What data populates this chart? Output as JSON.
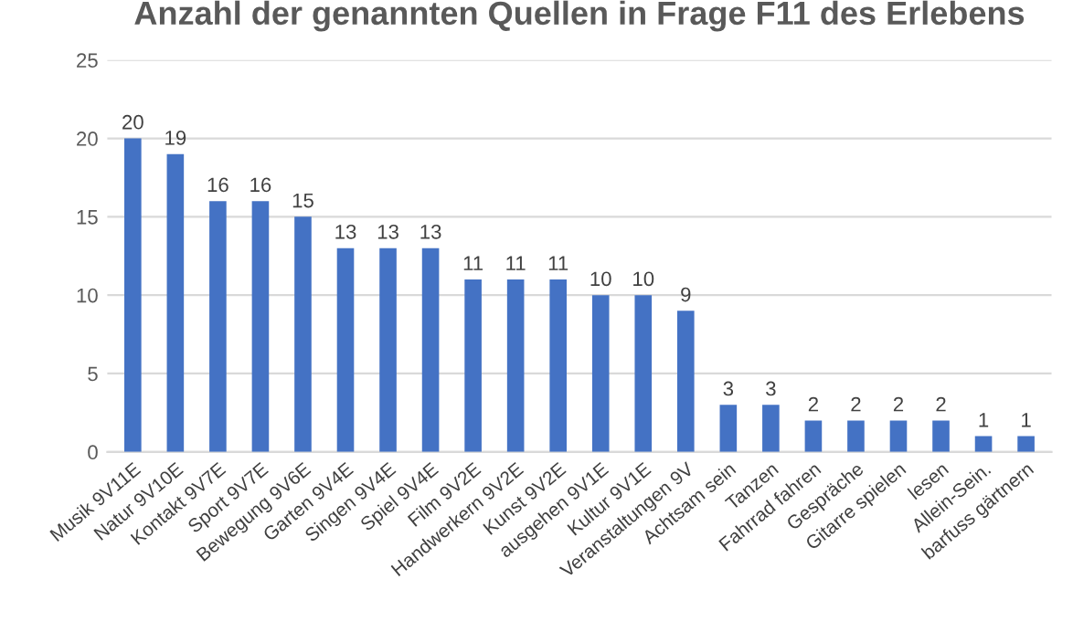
{
  "chart_data": {
    "type": "bar",
    "title": "Anzahl der genannten Quellen in Frage F11 des Erlebens",
    "categories": [
      "Musik 9V11E",
      "Natur 9V10E",
      "Kontakt 9V7E",
      "Sport 9V7E",
      "Bewegung 9V6E",
      "Garten 9V4E",
      "Singen 9V4E",
      "Spiel 9V4E",
      "Film 9V2E",
      "Handwerkern 9V2E",
      "Kunst 9V2E",
      "ausgehen 9V1E",
      "Kultur 9V1E",
      "Veranstaltungen 9V",
      "Achtsam sein",
      "Tanzen",
      "Fahrrad fahren",
      "Gespräche",
      "Gitarre spielen",
      "lesen",
      "Allein-Sein.",
      "barfuss gärtnern"
    ],
    "values": [
      20,
      19,
      16,
      16,
      15,
      13,
      13,
      13,
      11,
      11,
      11,
      10,
      10,
      9,
      3,
      3,
      2,
      2,
      2,
      2,
      1,
      1
    ],
    "color": "#4472c4",
    "ylim": [
      0,
      25
    ],
    "yticks": [
      0,
      5,
      10,
      15,
      20,
      25
    ],
    "grid": "y",
    "data_labels": true
  }
}
